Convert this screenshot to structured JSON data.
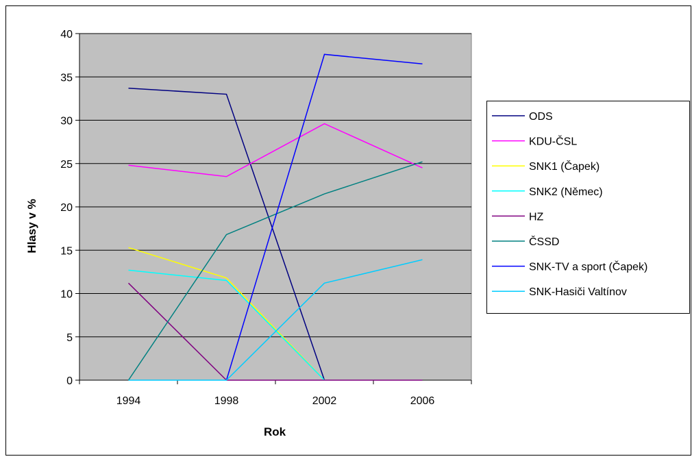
{
  "chart_data": {
    "type": "line",
    "title": "",
    "xlabel": "Rok",
    "ylabel": "Hlasy v %",
    "categories": [
      "1994",
      "1998",
      "2002",
      "2006"
    ],
    "ylim": [
      0,
      40
    ],
    "yticks": [
      0,
      5,
      10,
      15,
      20,
      25,
      30,
      35,
      40
    ],
    "grid": true,
    "legend_position": "right",
    "plot_background": "#c0c0c0",
    "series": [
      {
        "name": "ODS",
        "color": "#000080",
        "values": [
          33.7,
          33.0,
          0,
          null
        ]
      },
      {
        "name": "KDU-ČSL",
        "color": "#ff00ff",
        "values": [
          24.8,
          23.5,
          29.6,
          24.5
        ]
      },
      {
        "name": "SNK1 (Čapek)",
        "color": "#ffff00",
        "values": [
          15.3,
          11.8,
          0,
          null
        ]
      },
      {
        "name": "SNK2 (Němec)",
        "color": "#00ffff",
        "values": [
          12.7,
          11.5,
          0,
          null
        ]
      },
      {
        "name": "HZ",
        "color": "#800080",
        "values": [
          11.2,
          0,
          0,
          0
        ]
      },
      {
        "name": "ČSSD",
        "color": "#008080",
        "values": [
          0,
          16.8,
          21.5,
          25.2
        ]
      },
      {
        "name": "SNK-TV a sport (Čapek)",
        "color": "#0000ff",
        "values": [
          null,
          0,
          37.6,
          36.5
        ]
      },
      {
        "name": "SNK-Hasiči Valtínov",
        "color": "#00ccff",
        "values": [
          0,
          0,
          11.2,
          13.9
        ]
      }
    ]
  }
}
